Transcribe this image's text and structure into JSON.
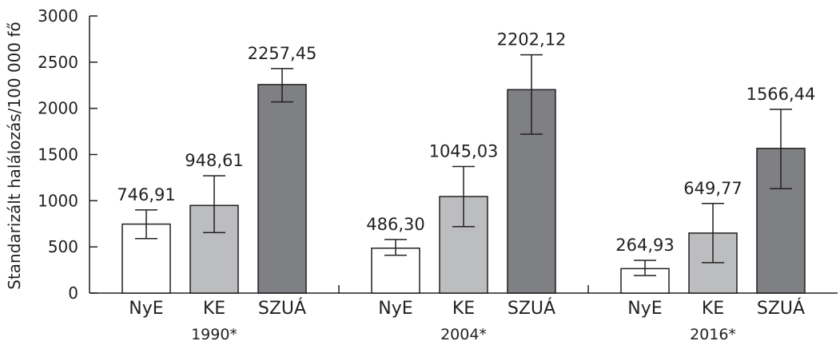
{
  "chart_data": {
    "type": "bar",
    "ylabel": "Standarizált halálozás/100 000 fő",
    "ylim": [
      0,
      3000
    ],
    "yticks": [
      0,
      500,
      1000,
      1500,
      2000,
      2500,
      3000
    ],
    "grid": false,
    "groups": [
      {
        "label": "1990*",
        "bars": [
          {
            "category": "NyE",
            "value": 746.91,
            "value_label": "746,91",
            "err_low": 590,
            "err_high": 900,
            "color": "#ffffff"
          },
          {
            "category": "KE",
            "value": 948.61,
            "value_label": "948,61",
            "err_low": 655,
            "err_high": 1270,
            "color": "#bcbdbf"
          },
          {
            "category": "SZUÁ",
            "value": 2257.45,
            "value_label": "2257,45",
            "err_low": 2070,
            "err_high": 2430,
            "color": "#7f8083"
          }
        ]
      },
      {
        "label": "2004*",
        "bars": [
          {
            "category": "NyE",
            "value": 486.3,
            "value_label": "486,30",
            "err_low": 410,
            "err_high": 580,
            "color": "#ffffff"
          },
          {
            "category": "KE",
            "value": 1045.03,
            "value_label": "1045,03",
            "err_low": 720,
            "err_high": 1370,
            "color": "#bcbdbf"
          },
          {
            "category": "SZUÁ",
            "value": 2202.12,
            "value_label": "2202,12",
            "err_low": 1720,
            "err_high": 2580,
            "color": "#7f8083"
          }
        ]
      },
      {
        "label": "2016*",
        "bars": [
          {
            "category": "NyE",
            "value": 264.93,
            "value_label": "264,93",
            "err_low": 190,
            "err_high": 355,
            "color": "#ffffff"
          },
          {
            "category": "KE",
            "value": 649.77,
            "value_label": "649,77",
            "err_low": 330,
            "err_high": 970,
            "color": "#bcbdbf"
          },
          {
            "category": "SZUÁ",
            "value": 1566.44,
            "value_label": "1566,44",
            "err_low": 1130,
            "err_high": 1990,
            "color": "#7f8083"
          }
        ]
      }
    ]
  }
}
